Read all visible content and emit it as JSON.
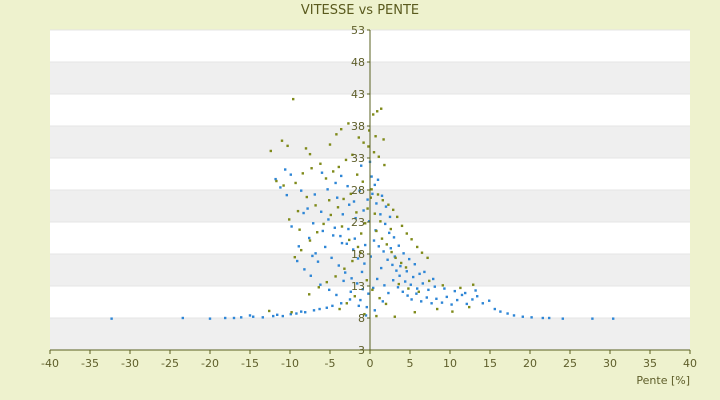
{
  "colors": {
    "background": "#EEF2CE",
    "band_light": "#FFFFFF",
    "band_dark": "#EFEFEF",
    "axis": "#5A6020",
    "series_1": "#2E86D6",
    "series_2": "#7F8A1A"
  },
  "chart_data": {
    "type": "scatter",
    "title": "VITESSE vs PENTE",
    "xlabel": "Pente [%]",
    "ylabel": "",
    "xlim": [
      -40,
      40
    ],
    "ylim": [
      3,
      53
    ],
    "x_ticks": [
      "-40",
      "-35",
      "-30",
      "-25",
      "-20",
      "-15",
      "-10",
      "-5",
      "0",
      "5",
      "10",
      "15",
      "20",
      "25",
      "30",
      "35",
      "40"
    ],
    "y_ticks": [
      "3",
      "8",
      "13",
      "18",
      "23",
      "28",
      "33",
      "38",
      "43",
      "48",
      "53"
    ],
    "grid": "alternating horizontal bands",
    "legend": "none",
    "series": [
      {
        "color": "#2E86D6",
        "points": [
          [
            -32.3,
            7.9
          ],
          [
            -23.4,
            8.0
          ],
          [
            -20.0,
            7.9
          ],
          [
            -18.1,
            8.0
          ],
          [
            -17.0,
            8.0
          ],
          [
            -16.1,
            8.1
          ],
          [
            -15.0,
            8.4
          ],
          [
            -14.6,
            8.2
          ],
          [
            -13.4,
            8.1
          ],
          [
            -12.1,
            8.3
          ],
          [
            -11.6,
            8.5
          ],
          [
            -10.9,
            8.3
          ],
          [
            -9.9,
            8.6
          ],
          [
            -9.2,
            8.7
          ],
          [
            -8.6,
            9.0
          ],
          [
            -8.1,
            8.9
          ],
          [
            -7.0,
            9.2
          ],
          [
            -6.3,
            9.4
          ],
          [
            -5.4,
            9.6
          ],
          [
            -4.7,
            9.9
          ],
          [
            -3.6,
            10.3
          ],
          [
            -2.5,
            10.9
          ],
          [
            -11.8,
            29.7
          ],
          [
            -10.6,
            31.2
          ],
          [
            -9.9,
            30.4
          ],
          [
            -8.6,
            27.9
          ],
          [
            -7.8,
            25.1
          ],
          [
            -6.9,
            27.3
          ],
          [
            -6.1,
            24.6
          ],
          [
            -5.2,
            23.4
          ],
          [
            -4.4,
            22.1
          ],
          [
            -3.7,
            20.8
          ],
          [
            -2.9,
            19.6
          ],
          [
            -2.1,
            18.7
          ],
          [
            -1.5,
            17.3
          ],
          [
            -0.7,
            16.5
          ],
          [
            -8.9,
            19.2
          ],
          [
            -7.6,
            20.5
          ],
          [
            -6.8,
            18.1
          ],
          [
            -5.9,
            21.6
          ],
          [
            -4.8,
            17.4
          ],
          [
            -3.9,
            16.2
          ],
          [
            -3.1,
            15.1
          ],
          [
            -2.3,
            14.2
          ],
          [
            -1.6,
            13.4
          ],
          [
            -0.9,
            12.5
          ],
          [
            -0.2,
            11.8
          ],
          [
            -7.4,
            14.6
          ],
          [
            -6.2,
            13.2
          ],
          [
            -5.1,
            12.4
          ],
          [
            -4.2,
            11.6
          ],
          [
            -3.3,
            13.8
          ],
          [
            -2.4,
            12.1
          ],
          [
            -1.2,
            10.8
          ],
          [
            -0.4,
            9.7
          ],
          [
            0.3,
            27.4
          ],
          [
            0.8,
            25.9
          ],
          [
            1.3,
            24.2
          ],
          [
            1.9,
            22.7
          ],
          [
            2.4,
            21.3
          ],
          [
            0.5,
            20.1
          ],
          [
            1.1,
            19.2
          ],
          [
            1.7,
            18.4
          ],
          [
            2.2,
            17.1
          ],
          [
            2.8,
            16.3
          ],
          [
            3.3,
            15.4
          ],
          [
            0.2,
            30.1
          ],
          [
            0.6,
            28.8
          ],
          [
            1.0,
            29.6
          ],
          [
            -0.3,
            26.5
          ],
          [
            -0.8,
            24.8
          ],
          [
            -1.3,
            27.9
          ],
          [
            -1.8,
            23.6
          ],
          [
            -2.6,
            25.7
          ],
          [
            -3.4,
            24.2
          ],
          [
            -4.1,
            26.8
          ],
          [
            2.9,
            13.9
          ],
          [
            3.5,
            12.8
          ],
          [
            4.1,
            12.1
          ],
          [
            4.7,
            11.5
          ],
          [
            5.2,
            10.9
          ],
          [
            5.8,
            11.8
          ],
          [
            6.4,
            10.6
          ],
          [
            7.1,
            11.2
          ],
          [
            7.7,
            10.3
          ],
          [
            8.3,
            11.0
          ],
          [
            9.0,
            10.4
          ],
          [
            9.6,
            11.3
          ],
          [
            10.2,
            10.1
          ],
          [
            10.9,
            10.8
          ],
          [
            11.5,
            11.6
          ],
          [
            12.1,
            10.2
          ],
          [
            12.8,
            10.9
          ],
          [
            13.4,
            11.4
          ],
          [
            14.1,
            10.3
          ],
          [
            14.9,
            10.7
          ],
          [
            15.6,
            9.4
          ],
          [
            16.3,
            9.0
          ],
          [
            17.2,
            8.7
          ],
          [
            18.0,
            8.4
          ],
          [
            19.1,
            8.2
          ],
          [
            20.2,
            8.1
          ],
          [
            21.6,
            8.0
          ],
          [
            22.4,
            8.0
          ],
          [
            24.1,
            7.9
          ],
          [
            27.8,
            7.9
          ],
          [
            30.4,
            7.9
          ],
          [
            3.7,
            14.6
          ],
          [
            4.4,
            13.7
          ],
          [
            5.1,
            13.2
          ],
          [
            5.9,
            12.6
          ],
          [
            6.6,
            13.4
          ],
          [
            7.3,
            12.4
          ],
          [
            8.1,
            12.9
          ],
          [
            2.6,
            18.9
          ],
          [
            3.1,
            17.6
          ],
          [
            3.8,
            16.1
          ],
          [
            4.6,
            15.3
          ],
          [
            5.4,
            14.4
          ],
          [
            6.2,
            14.9
          ],
          [
            1.4,
            15.8
          ],
          [
            0.9,
            14.1
          ],
          [
            0.4,
            12.7
          ],
          [
            1.8,
            13.1
          ],
          [
            2.3,
            11.9
          ],
          [
            -1.9,
            20.4
          ],
          [
            -2.7,
            21.9
          ],
          [
            -3.5,
            19.7
          ],
          [
            -4.6,
            20.9
          ],
          [
            -5.6,
            19.1
          ],
          [
            -6.5,
            16.8
          ],
          [
            -7.2,
            17.7
          ],
          [
            -8.2,
            15.6
          ],
          [
            -9.1,
            16.9
          ],
          [
            -9.8,
            22.3
          ],
          [
            -10.4,
            27.2
          ],
          [
            -11.2,
            28.4
          ],
          [
            -8.3,
            24.4
          ],
          [
            -7.1,
            22.8
          ],
          [
            -0.1,
            23.1
          ],
          [
            0.7,
            21.7
          ],
          [
            -0.6,
            19.4
          ],
          [
            0.1,
            17.6
          ],
          [
            -1.0,
            15.2
          ],
          [
            1.5,
            27.1
          ],
          [
            2.0,
            25.4
          ],
          [
            2.5,
            23.8
          ],
          [
            3.0,
            20.6
          ],
          [
            3.6,
            19.3
          ],
          [
            4.2,
            18.1
          ],
          [
            4.9,
            17.2
          ],
          [
            5.6,
            16.4
          ],
          [
            6.8,
            15.2
          ],
          [
            7.9,
            14.1
          ],
          [
            9.3,
            12.6
          ],
          [
            10.6,
            12.2
          ],
          [
            11.9,
            11.9
          ],
          [
            13.2,
            12.3
          ],
          [
            -0.5,
            8.4
          ],
          [
            0.6,
            9.2
          ],
          [
            -1.4,
            9.9
          ],
          [
            1.6,
            10.6
          ],
          [
            -2.0,
            26.2
          ],
          [
            -2.8,
            28.6
          ],
          [
            -3.6,
            30.2
          ],
          [
            -4.3,
            29.1
          ],
          [
            -5.3,
            28.1
          ],
          [
            -6.0,
            30.7
          ],
          [
            -1.1,
            31.8
          ],
          [
            0.0,
            32.4
          ]
        ]
      },
      {
        "color": "#7F8A1A",
        "points": [
          [
            -9.6,
            42.2
          ],
          [
            -11.0,
            35.7
          ],
          [
            -10.3,
            34.9
          ],
          [
            -12.4,
            34.1
          ],
          [
            -8.0,
            34.5
          ],
          [
            -7.5,
            33.6
          ],
          [
            -5.0,
            35.1
          ],
          [
            -4.2,
            36.7
          ],
          [
            -3.6,
            37.5
          ],
          [
            -2.7,
            38.4
          ],
          [
            0.4,
            39.8
          ],
          [
            0.9,
            40.3
          ],
          [
            1.4,
            40.7
          ],
          [
            1.7,
            35.9
          ],
          [
            -1.4,
            36.2
          ],
          [
            -0.8,
            35.4
          ],
          [
            -0.2,
            34.8
          ],
          [
            0.5,
            33.9
          ],
          [
            1.1,
            33.2
          ],
          [
            1.8,
            31.9
          ],
          [
            -6.2,
            32.1
          ],
          [
            -7.3,
            31.4
          ],
          [
            -8.4,
            30.6
          ],
          [
            -9.3,
            29.1
          ],
          [
            -10.8,
            28.7
          ],
          [
            -11.7,
            29.4
          ],
          [
            -5.5,
            29.8
          ],
          [
            -4.6,
            30.9
          ],
          [
            -3.9,
            31.6
          ],
          [
            -3.0,
            32.7
          ],
          [
            -2.2,
            33.5
          ],
          [
            -1.6,
            30.4
          ],
          [
            -0.9,
            29.3
          ],
          [
            0.2,
            28.1
          ],
          [
            1.0,
            27.3
          ],
          [
            1.6,
            26.4
          ],
          [
            2.3,
            25.7
          ],
          [
            2.9,
            24.9
          ],
          [
            3.4,
            23.8
          ],
          [
            4.0,
            22.4
          ],
          [
            4.6,
            21.2
          ],
          [
            5.2,
            20.3
          ],
          [
            5.9,
            19.1
          ],
          [
            6.5,
            18.2
          ],
          [
            7.2,
            17.4
          ],
          [
            -2.4,
            27.4
          ],
          [
            -3.3,
            26.6
          ],
          [
            -4.0,
            25.3
          ],
          [
            -4.9,
            24.1
          ],
          [
            -5.8,
            22.7
          ],
          [
            -6.6,
            21.4
          ],
          [
            -7.5,
            20.1
          ],
          [
            -8.6,
            18.6
          ],
          [
            -9.4,
            17.5
          ],
          [
            -1.7,
            24.5
          ],
          [
            -0.6,
            22.8
          ],
          [
            0.8,
            21.6
          ],
          [
            1.5,
            20.4
          ],
          [
            2.1,
            19.5
          ],
          [
            2.7,
            18.3
          ],
          [
            3.2,
            17.4
          ],
          [
            3.9,
            16.6
          ],
          [
            4.5,
            15.9
          ],
          [
            -1.2,
            18.2
          ],
          [
            -2.2,
            16.9
          ],
          [
            -3.2,
            15.7
          ],
          [
            -4.3,
            14.5
          ],
          [
            -5.4,
            13.6
          ],
          [
            -6.4,
            12.8
          ],
          [
            -7.6,
            11.7
          ],
          [
            -0.4,
            13.9
          ],
          [
            0.3,
            12.4
          ],
          [
            1.2,
            11.1
          ],
          [
            2.0,
            10.2
          ],
          [
            -1.9,
            11.4
          ],
          [
            -2.9,
            10.3
          ],
          [
            -3.8,
            9.4
          ],
          [
            -0.7,
            8.6
          ],
          [
            0.8,
            8.3
          ],
          [
            -9.8,
            8.9
          ],
          [
            -12.6,
            9.1
          ],
          [
            3.1,
            8.2
          ],
          [
            5.6,
            8.9
          ],
          [
            8.4,
            9.4
          ],
          [
            10.3,
            9.0
          ],
          [
            12.4,
            9.7
          ],
          [
            9.1,
            13.1
          ],
          [
            11.3,
            12.7
          ],
          [
            12.9,
            13.2
          ],
          [
            0.1,
            26.8
          ],
          [
            -0.3,
            25.1
          ],
          [
            0.6,
            24.3
          ],
          [
            -1.1,
            21.2
          ],
          [
            1.3,
            23.1
          ],
          [
            2.6,
            21.9
          ],
          [
            -5.1,
            26.4
          ],
          [
            -6.8,
            25.6
          ],
          [
            -7.9,
            26.9
          ],
          [
            -9.0,
            24.7
          ],
          [
            -10.1,
            23.4
          ],
          [
            -8.8,
            21.8
          ],
          [
            -3.5,
            22.3
          ],
          [
            -2.6,
            20.2
          ],
          [
            -1.5,
            19.1
          ],
          [
            3.6,
            13.3
          ],
          [
            4.8,
            12.6
          ],
          [
            6.1,
            12.1
          ],
          [
            7.4,
            13.8
          ],
          [
            -0.1,
            37.3
          ],
          [
            0.7,
            36.4
          ]
        ]
      }
    ]
  }
}
